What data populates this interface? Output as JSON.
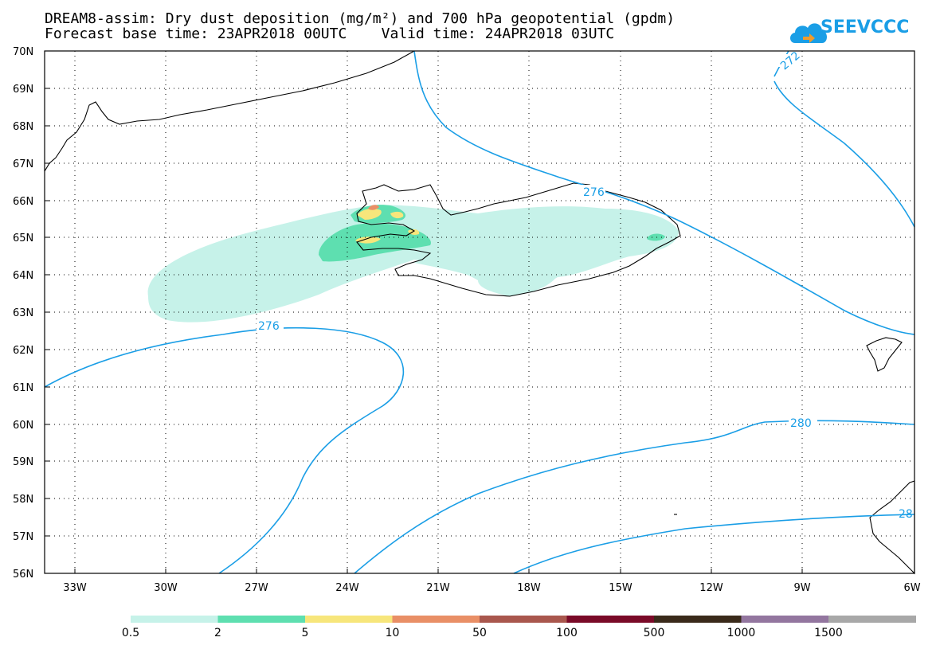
{
  "title": {
    "line1": "DREAM8-assim: Dry dust deposition (mg/m²) and 700 hPa geopotential (gpdm)",
    "line2": "Forecast base time: 23APR2018 00UTC    Valid time: 24APR2018 03UTC"
  },
  "logo": {
    "text": "SEEVCCC",
    "icon": "cloud-icon",
    "color": "#1a9ee6"
  },
  "map": {
    "lat_labels": [
      "70N",
      "69N",
      "68N",
      "67N",
      "66N",
      "65N",
      "64N",
      "63N",
      "62N",
      "61N",
      "60N",
      "59N",
      "58N",
      "57N",
      "56N"
    ],
    "lon_labels": [
      "33W",
      "30W",
      "27W",
      "24W",
      "21W",
      "18W",
      "15W",
      "12W",
      "9W",
      "6W"
    ],
    "extent": {
      "lon_min": -34.5,
      "lon_max": -6,
      "lat_min": 56,
      "lat_max": 70
    },
    "contour_color": "#1a9ee6",
    "contour_labels": [
      "272",
      "276",
      "276",
      "280",
      "28"
    ]
  },
  "colorbar": {
    "labels": [
      "0.5",
      "2",
      "5",
      "10",
      "50",
      "100",
      "500",
      "1000",
      "1500"
    ],
    "colors": [
      "#c6f2e9",
      "#5edfb0",
      "#f7e67b",
      "#e98f66",
      "#a9574d",
      "#7a0a28",
      "#3a2a1a",
      "#93769f",
      "#a8a8a8"
    ]
  }
}
